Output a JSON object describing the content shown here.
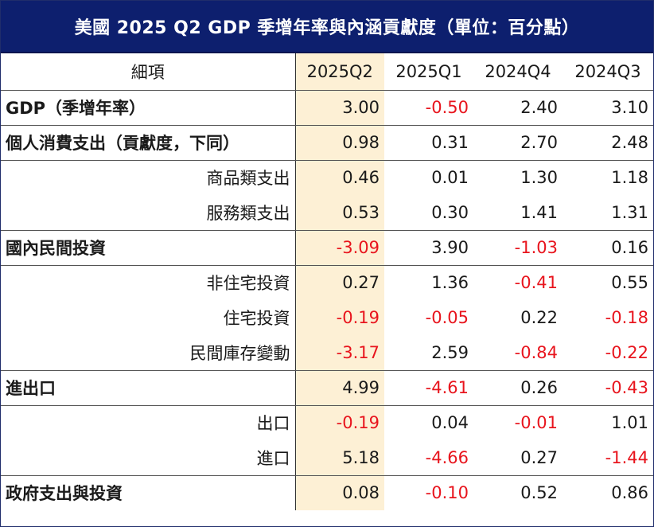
{
  "title": "美國 2025 Q2 GDP 季增年率與內涵貢獻度（單位：百分點）",
  "header": {
    "item": "細項",
    "periods": [
      "2025Q2",
      "2025Q1",
      "2024Q4",
      "2024Q3"
    ]
  },
  "colors": {
    "header_bg": "#0d1f6e",
    "highlight": "#fdf0d5",
    "negative": "#e8141d"
  },
  "rows": [
    {
      "label": "GDP（季增年率）",
      "bold": true,
      "sep": true,
      "values": [
        "3.00",
        "-0.50",
        "2.40",
        "3.10"
      ]
    },
    {
      "label": "個人消費支出（貢獻度，下同）",
      "bold": true,
      "sep": true,
      "values": [
        "0.98",
        "0.31",
        "2.70",
        "2.48"
      ]
    },
    {
      "label": "商品類支出",
      "bold": false,
      "sep": false,
      "values": [
        "0.46",
        "0.01",
        "1.30",
        "1.18"
      ]
    },
    {
      "label": "服務類支出",
      "bold": false,
      "sep": true,
      "values": [
        "0.53",
        "0.30",
        "1.41",
        "1.31"
      ]
    },
    {
      "label": "國內民間投資",
      "bold": true,
      "sep": true,
      "values": [
        "-3.09",
        "3.90",
        "-1.03",
        "0.16"
      ]
    },
    {
      "label": "非住宅投資",
      "bold": false,
      "sep": false,
      "values": [
        "0.27",
        "1.36",
        "-0.41",
        "0.55"
      ]
    },
    {
      "label": "住宅投資",
      "bold": false,
      "sep": false,
      "values": [
        "-0.19",
        "-0.05",
        "0.22",
        "-0.18"
      ]
    },
    {
      "label": "民間庫存變動",
      "bold": false,
      "sep": true,
      "values": [
        "-3.17",
        "2.59",
        "-0.84",
        "-0.22"
      ]
    },
    {
      "label": "進出口",
      "bold": true,
      "sep": true,
      "values": [
        "4.99",
        "-4.61",
        "0.26",
        "-0.43"
      ]
    },
    {
      "label": "出口",
      "bold": false,
      "sep": false,
      "values": [
        "-0.19",
        "0.04",
        "-0.01",
        "1.01"
      ]
    },
    {
      "label": "進口",
      "bold": false,
      "sep": true,
      "values": [
        "5.18",
        "-4.66",
        "0.27",
        "-1.44"
      ]
    },
    {
      "label": "政府支出與投資",
      "bold": true,
      "sep": false,
      "values": [
        "0.08",
        "-0.10",
        "0.52",
        "0.86"
      ]
    }
  ]
}
